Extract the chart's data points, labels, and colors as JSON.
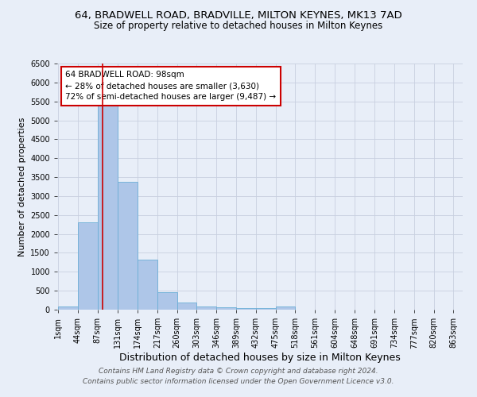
{
  "title1": "64, BRADWELL ROAD, BRADVILLE, MILTON KEYNES, MK13 7AD",
  "title2": "Size of property relative to detached houses in Milton Keynes",
  "xlabel": "Distribution of detached houses by size in Milton Keynes",
  "ylabel": "Number of detached properties",
  "footer1": "Contains HM Land Registry data © Crown copyright and database right 2024.",
  "footer2": "Contains public sector information licensed under the Open Government Licence v3.0.",
  "annotation_title": "64 BRADWELL ROAD: 98sqm",
  "annotation_line1": "← 28% of detached houses are smaller (3,630)",
  "annotation_line2": "72% of semi-detached houses are larger (9,487) →",
  "bins": [
    1,
    44,
    87,
    131,
    174,
    217,
    260,
    303,
    346,
    389,
    432,
    475,
    518,
    561,
    604,
    648,
    691,
    734,
    777,
    820,
    863
  ],
  "values": [
    75,
    2300,
    5450,
    3380,
    1320,
    465,
    185,
    75,
    55,
    50,
    50,
    75,
    0,
    0,
    0,
    0,
    0,
    0,
    0,
    0
  ],
  "bar_color": "#aec6e8",
  "bar_edge_color": "#6baed6",
  "property_line_x": 98,
  "ylim": [
    0,
    6500
  ],
  "yticks": [
    0,
    500,
    1000,
    1500,
    2000,
    2500,
    3000,
    3500,
    4000,
    4500,
    5000,
    5500,
    6000,
    6500
  ],
  "bg_color": "#e8eef8",
  "annotation_box_color": "#ffffff",
  "annotation_box_edge": "#cc0000",
  "red_line_color": "#cc0000",
  "grid_color": "#c8d0e0",
  "title1_fontsize": 9.5,
  "title2_fontsize": 8.5,
  "xlabel_fontsize": 9,
  "ylabel_fontsize": 8,
  "tick_fontsize": 7,
  "footer_fontsize": 6.5,
  "annotation_fontsize": 7.5
}
